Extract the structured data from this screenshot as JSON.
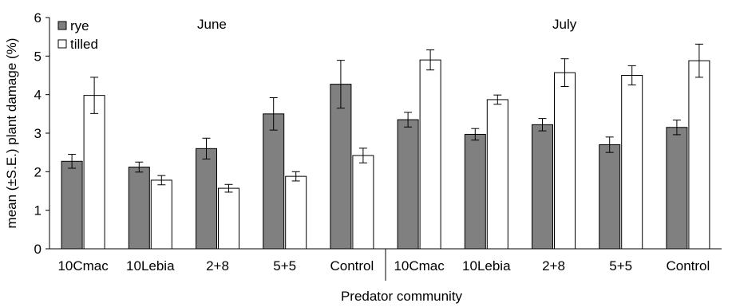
{
  "chart_data": {
    "type": "bar",
    "title": "",
    "xlabel": "Predator  community",
    "ylabel": "mean (±S.E.) plant damage (%)",
    "ylim": [
      0,
      6
    ],
    "yticks": [
      0,
      1,
      2,
      3,
      4,
      5,
      6
    ],
    "grid": false,
    "legend_position": "top-left",
    "sections": [
      {
        "label": "June",
        "categories": [
          "10Cmac",
          "10Lebia",
          "2+8",
          "5+5",
          "Control"
        ]
      },
      {
        "label": "July",
        "categories": [
          "10Cmac",
          "10Lebia",
          "2+8",
          "5+5",
          "Control"
        ]
      }
    ],
    "categories": [
      "10Cmac",
      "10Lebia",
      "2+8",
      "5+5",
      "Control",
      "10Cmac",
      "10Lebia",
      "2+8",
      "5+5",
      "Control"
    ],
    "series": [
      {
        "name": "rye",
        "color": "#808080",
        "values": [
          2.27,
          2.12,
          2.6,
          3.5,
          4.27,
          3.35,
          2.97,
          3.22,
          2.7,
          3.15
        ],
        "errors": [
          0.18,
          0.13,
          0.27,
          0.42,
          0.62,
          0.19,
          0.15,
          0.16,
          0.2,
          0.19
        ]
      },
      {
        "name": "tilled",
        "color": "#ffffff",
        "values": [
          3.98,
          1.78,
          1.57,
          1.88,
          2.42,
          4.9,
          3.87,
          4.57,
          4.5,
          4.88
        ],
        "errors": [
          0.47,
          0.12,
          0.1,
          0.12,
          0.19,
          0.26,
          0.12,
          0.36,
          0.25,
          0.43
        ]
      }
    ]
  }
}
